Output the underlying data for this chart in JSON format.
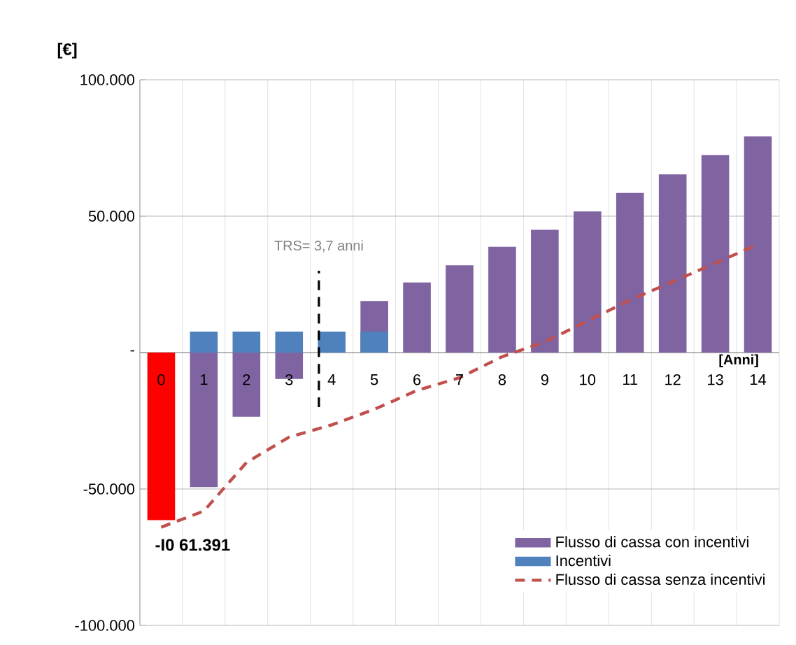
{
  "chart_data": {
    "type": "bar",
    "ylabel": "[€]",
    "xlabel": "[Anni]",
    "x": [
      0,
      1,
      2,
      3,
      4,
      5,
      6,
      7,
      8,
      9,
      10,
      11,
      12,
      13,
      14
    ],
    "xlim": [
      -0.5,
      14.5
    ],
    "xticks": [
      0,
      1,
      2,
      3,
      4,
      5,
      6,
      7,
      8,
      9,
      10,
      11,
      12,
      13,
      14
    ],
    "ylim": [
      -100000,
      100000
    ],
    "yticks": [
      {
        "value": -100000,
        "label": "-100.000"
      },
      {
        "value": -50000,
        "label": "-50.000"
      },
      {
        "value": 0,
        "label": "-"
      },
      {
        "value": 50000,
        "label": "50.000"
      },
      {
        "value": 100000,
        "label": "100.000"
      }
    ],
    "series": [
      {
        "name": "Flusso di cassa con incentivi",
        "color": "#8064a2",
        "colors": [
          "#ff0000",
          "#8064a2",
          "#8064a2",
          "#8064a2",
          "#8064a2",
          "#8064a2",
          "#8064a2",
          "#8064a2",
          "#8064a2",
          "#8064a2",
          "#8064a2",
          "#8064a2",
          "#8064a2",
          "#8064a2",
          "#8064a2"
        ],
        "values": [
          -61391,
          -49300,
          -23500,
          -9700,
          null,
          18900,
          25700,
          32000,
          38800,
          45000,
          51700,
          58500,
          65300,
          72400,
          79200
        ]
      },
      {
        "name": "Incentivi",
        "color": "#4f81bd",
        "values": [
          null,
          7700,
          7700,
          7700,
          7700,
          7700,
          null,
          null,
          null,
          null,
          null,
          null,
          null,
          null,
          null
        ]
      },
      {
        "name": "Flusso di cassa senza incentivi",
        "type": "line",
        "color": "#c0504d",
        "line_style": "dashed",
        "values": [
          -64000,
          -58100,
          -40300,
          -31000,
          -26500,
          -20800,
          -13900,
          -9200,
          -1500,
          3900,
          11600,
          19200,
          26000,
          32800,
          39600
        ]
      }
    ],
    "ref_lines": [
      {
        "axis": "x",
        "value": 3.7,
        "label": "TRS= 3,7 anni",
        "color": "#000000",
        "line_style": "dashed"
      }
    ],
    "annotations": [
      {
        "text": "-I0 61.391",
        "x": 0,
        "y": -61391
      }
    ],
    "grid": true,
    "legend": "bottom right"
  }
}
